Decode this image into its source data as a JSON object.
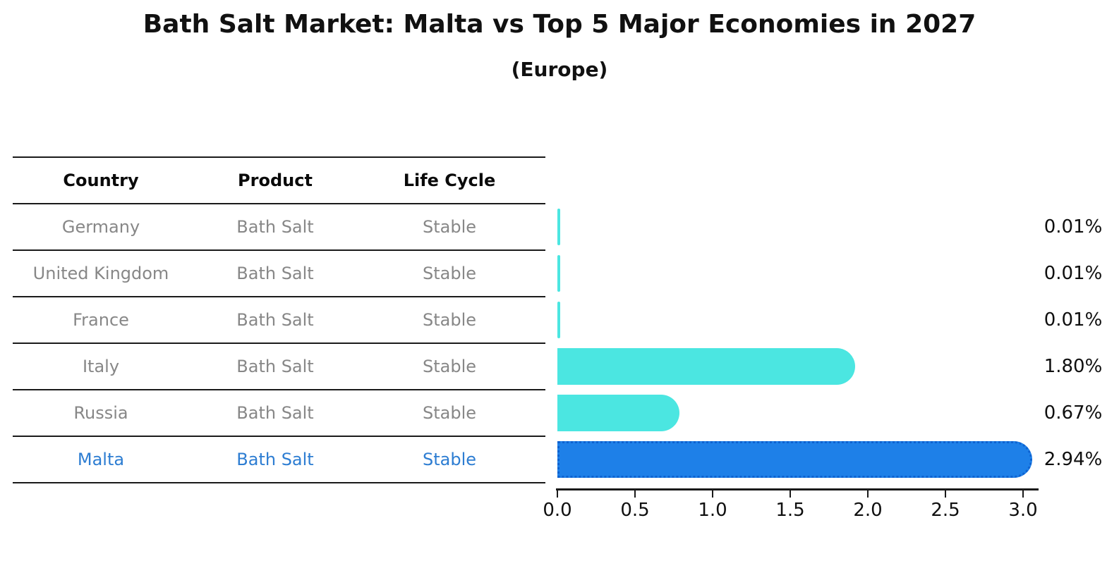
{
  "title": "Bath Salt Market: Malta vs Top 5 Major Economies in 2027",
  "subtitle": "(Europe)",
  "table": {
    "headers": {
      "country": "Country",
      "product": "Product",
      "life_cycle": "Life Cycle"
    },
    "rows": [
      {
        "country": "Germany",
        "product": "Bath Salt",
        "life_cycle": "Stable",
        "highlight": false
      },
      {
        "country": "United Kingdom",
        "product": "Bath Salt",
        "life_cycle": "Stable",
        "highlight": false
      },
      {
        "country": "France",
        "product": "Bath Salt",
        "life_cycle": "Stable",
        "highlight": false
      },
      {
        "country": "Italy",
        "product": "Bath Salt",
        "life_cycle": "Stable",
        "highlight": false
      },
      {
        "country": "Russia",
        "product": "Bath Salt",
        "life_cycle": "Stable",
        "highlight": false
      },
      {
        "country": "Malta",
        "product": "Bath Salt",
        "life_cycle": "Stable",
        "highlight": true
      }
    ]
  },
  "chart_data": {
    "type": "bar",
    "orientation": "horizontal",
    "title": "Bath Salt Market: Malta vs Top 5 Major Economies in 2027",
    "subtitle": "(Europe)",
    "categories": [
      "Germany",
      "United Kingdom",
      "France",
      "Italy",
      "Russia",
      "Malta"
    ],
    "values": [
      0.01,
      0.01,
      0.01,
      1.8,
      0.67,
      2.94
    ],
    "value_labels": [
      "0.01%",
      "0.01%",
      "0.01%",
      "1.80%",
      "0.67%",
      "2.94%"
    ],
    "x_ticks": [
      "0.0",
      "0.5",
      "1.0",
      "1.5",
      "2.0",
      "2.5",
      "3.0"
    ],
    "xlim": [
      0.0,
      3.0
    ],
    "unit": "percent",
    "grid": false,
    "legend": false,
    "bar_color": "#4be6e1",
    "highlight_bar_color": "#1e80e8",
    "highlight_border_color": "#0e62d0",
    "highlight_text_color": "#2d7dd2",
    "highlight_index": 5
  }
}
